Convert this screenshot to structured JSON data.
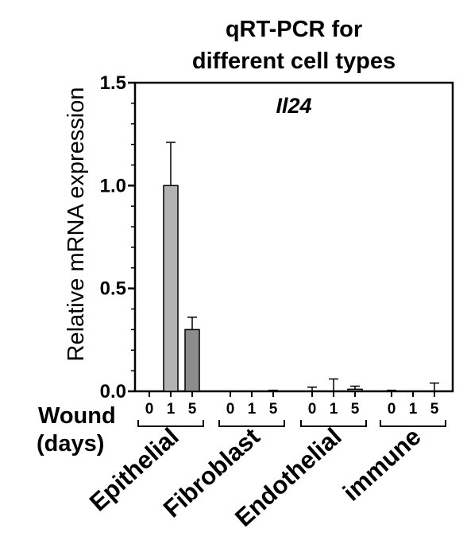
{
  "chart_data": {
    "type": "bar",
    "title_lines": [
      "qRT-PCR for",
      "different cell types"
    ],
    "gene_label": "Il24",
    "ylabel": "Relative mRNA expression",
    "ylim": [
      0,
      1.5
    ],
    "yticks": [
      "0.0",
      "0.5",
      "1.0",
      "1.5"
    ],
    "x_row_label": "Wound",
    "x_row_label_2": "(days)",
    "groups": [
      {
        "name": "Epithelial",
        "days": [
          "0",
          "1",
          "5"
        ],
        "values": [
          0.0,
          1.0,
          0.3
        ],
        "errors": [
          0.0,
          0.21,
          0.06
        ]
      },
      {
        "name": "Fibroblast",
        "days": [
          "0",
          "1",
          "5"
        ],
        "values": [
          0.0,
          0.0,
          0.0
        ],
        "errors": [
          0.0,
          0.0,
          0.005
        ]
      },
      {
        "name": "Endothelial",
        "days": [
          "0",
          "1",
          "5"
        ],
        "values": [
          0.0,
          0.0,
          0.01
        ],
        "errors": [
          0.02,
          0.06,
          0.015
        ]
      },
      {
        "name": "immune",
        "days": [
          "0",
          "1",
          "5"
        ],
        "values": [
          0.0,
          0.0,
          0.0
        ],
        "errors": [
          0.005,
          0.0,
          0.04
        ]
      }
    ],
    "bar_colors": [
      "#d9d9d9",
      "#b3b3b3",
      "#8c8c8c"
    ]
  }
}
